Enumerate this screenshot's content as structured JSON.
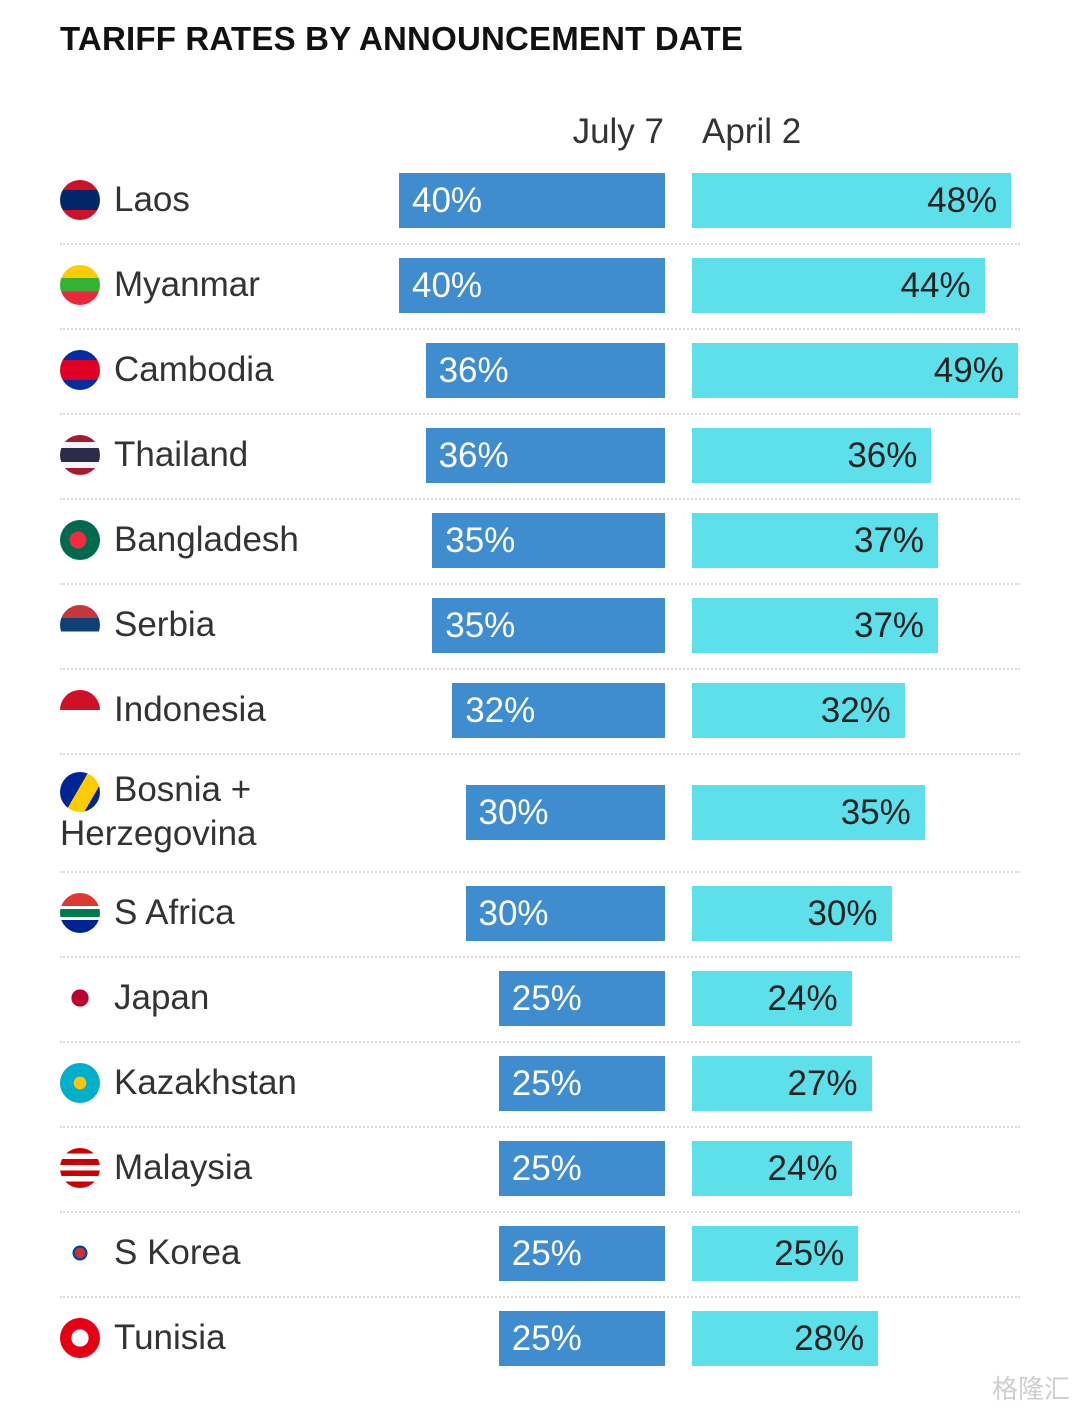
{
  "chart_data": {
    "type": "bar",
    "title": "TARIFF RATES BY ANNOUNCEMENT DATE",
    "categories": [
      "Laos",
      "Myanmar",
      "Cambodia",
      "Thailand",
      "Bangladesh",
      "Serbia",
      "Indonesia",
      "Bosnia + Herzegovina",
      "S Africa",
      "Japan",
      "Kazakhstan",
      "Malaysia",
      "S Korea",
      "Tunisia"
    ],
    "series": [
      {
        "name": "July 7",
        "values": [
          40,
          40,
          36,
          36,
          35,
          35,
          32,
          30,
          30,
          25,
          25,
          25,
          25,
          25
        ],
        "color": "#3f8ccf"
      },
      {
        "name": "April 2",
        "values": [
          48,
          44,
          49,
          36,
          37,
          37,
          32,
          35,
          30,
          24,
          27,
          24,
          25,
          28
        ],
        "color": "#5ee0ea"
      }
    ],
    "value_suffix": "%",
    "flags": [
      "laos-flag-icon",
      "myanmar-flag-icon",
      "cambodia-flag-icon",
      "thailand-flag-icon",
      "bangladesh-flag-icon",
      "serbia-flag-icon",
      "indonesia-flag-icon",
      "bosnia-flag-icon",
      "south-africa-flag-icon",
      "japan-flag-icon",
      "kazakhstan-flag-icon",
      "malaysia-flag-icon",
      "south-korea-flag-icon",
      "tunisia-flag-icon"
    ]
  },
  "watermark": "格隆汇"
}
